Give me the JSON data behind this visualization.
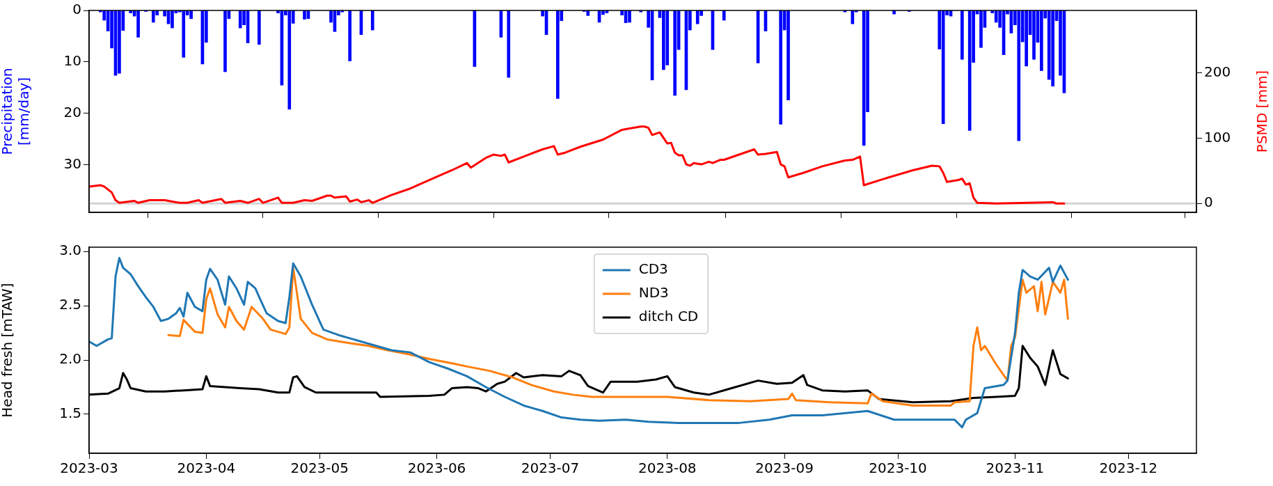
{
  "chart_data": [
    {
      "type": "bar",
      "ylabel": "Precipitation\n[mm/day]",
      "y2label": "PSMD [mm]",
      "xlim": [
        "2023-03-01",
        "2023-12-19"
      ],
      "xticks": [
        "2023-03",
        "2023-04",
        "2023-05",
        "2023-06",
        "2023-07",
        "2023-08",
        "2023-09",
        "2023-10",
        "2023-11",
        "2023-12"
      ],
      "ylim": [
        39.2,
        0
      ],
      "yticks": [
        0,
        10,
        20,
        30
      ],
      "y2lim": [
        -13.6,
        296
      ],
      "y2ticks": [
        0,
        100,
        200
      ],
      "tick_labels": "y",
      "ref_lines": [
        {
          "axis": "y2",
          "value": 0,
          "color": "#d3d3d3"
        }
      ],
      "series": [
        {
          "type": "bar",
          "color": "#0000ff",
          "x": [
            "2023-03-04",
            "2023-03-05",
            "2023-03-06",
            "2023-03-07",
            "2023-03-08",
            "2023-03-09",
            "2023-03-10",
            "2023-03-12",
            "2023-03-13",
            "2023-03-14",
            "2023-03-16",
            "2023-03-18",
            "2023-03-19",
            "2023-03-21",
            "2023-03-22",
            "2023-03-23",
            "2023-03-24",
            "2023-03-25",
            "2023-03-26",
            "2023-03-27",
            "2023-03-28",
            "2023-03-31",
            "2023-04-01",
            "2023-04-06",
            "2023-04-07",
            "2023-04-10",
            "2023-04-11",
            "2023-04-12",
            "2023-04-15",
            "2023-04-20",
            "2023-04-21",
            "2023-04-22",
            "2023-04-23",
            "2023-04-24",
            "2023-04-27",
            "2023-04-28",
            "2023-05-04",
            "2023-05-05",
            "2023-05-06",
            "2023-05-07",
            "2023-05-09",
            "2023-05-12",
            "2023-05-15",
            "2023-06-11",
            "2023-06-18",
            "2023-06-20",
            "2023-06-29",
            "2023-06-30",
            "2023-07-03",
            "2023-07-04",
            "2023-07-10",
            "2023-07-11",
            "2023-07-14",
            "2023-07-15",
            "2023-07-16",
            "2023-07-20",
            "2023-07-21",
            "2023-07-22",
            "2023-07-25",
            "2023-07-27",
            "2023-07-28",
            "2023-07-30",
            "2023-07-31",
            "2023-08-01",
            "2023-08-03",
            "2023-08-04",
            "2023-08-06",
            "2023-08-07",
            "2023-08-09",
            "2023-08-10",
            "2023-08-13",
            "2023-08-16",
            "2023-08-25",
            "2023-08-27",
            "2023-08-31",
            "2023-09-01",
            "2023-09-02",
            "2023-09-17",
            "2023-09-19",
            "2023-09-20",
            "2023-09-22",
            "2023-09-23",
            "2023-09-30",
            "2023-10-04",
            "2023-10-12",
            "2023-10-13",
            "2023-10-14",
            "2023-10-15",
            "2023-10-18",
            "2023-10-20",
            "2023-10-21",
            "2023-10-22",
            "2023-10-23",
            "2023-10-24",
            "2023-10-26",
            "2023-10-27",
            "2023-10-28",
            "2023-10-29",
            "2023-10-30",
            "2023-10-31",
            "2023-11-01",
            "2023-11-02",
            "2023-11-03",
            "2023-11-04",
            "2023-11-05",
            "2023-11-06",
            "2023-11-07",
            "2023-11-08",
            "2023-11-09",
            "2023-11-10",
            "2023-11-11",
            "2023-11-12",
            "2023-11-13",
            "2023-11-14"
          ],
          "values": [
            0.3,
            1.9,
            4.0,
            7.3,
            12.6,
            12.2,
            3.9,
            0.5,
            1.1,
            5.2,
            0.2,
            2.3,
            0.9,
            1.1,
            2.6,
            3.4,
            0.5,
            0.3,
            9.1,
            0.9,
            1.6,
            10.4,
            6.2,
            11.9,
            1.6,
            3.4,
            2.8,
            6.3,
            6.6,
            0.5,
            14.5,
            0.9,
            19.2,
            2.5,
            1.7,
            1.6,
            2.3,
            4.1,
            0.9,
            0.3,
            9.8,
            4.7,
            3.8,
            10.9,
            5.2,
            13.0,
            1.1,
            4.7,
            17.1,
            2.0,
            0.2,
            1.0,
            2.3,
            0.8,
            0.5,
            0.9,
            2.4,
            2.3,
            0.3,
            3.3,
            13.5,
            1.4,
            11.5,
            10.6,
            16.5,
            7.6,
            15.4,
            3.8,
            2.6,
            1.0,
            7.6,
            1.9,
            10.2,
            4.0,
            22.1,
            3.8,
            17.4,
            0.3,
            2.6,
            0.3,
            26.2,
            19.7,
            0.7,
            0.2,
            7.5,
            22.0,
            0.9,
            1.1,
            9.5,
            23.3,
            10.1,
            0.7,
            7.2,
            3.3,
            0.5,
            2.3,
            3.3,
            8.6,
            0.7,
            4.4,
            2.8,
            25.3,
            6.1,
            10.8,
            4.7,
            9.5,
            6.2,
            11.7,
            1.5,
            13.4,
            14.7,
            2.0,
            12.6,
            16.0
          ]
        },
        {
          "type": "line",
          "axis": "y2",
          "color": "#ff0000",
          "x": [
            "2023-03-01",
            "2023-03-04",
            "2023-03-05",
            "2023-03-07",
            "2023-03-08",
            "2023-03-09",
            "2023-03-13",
            "2023-03-14",
            "2023-03-17",
            "2023-03-21",
            "2023-03-25",
            "2023-03-27",
            "2023-03-30",
            "2023-03-31",
            "2023-04-05",
            "2023-04-06",
            "2023-04-10",
            "2023-04-12",
            "2023-04-15",
            "2023-04-16",
            "2023-04-20",
            "2023-04-21",
            "2023-04-24",
            "2023-04-27",
            "2023-04-29",
            "2023-05-03",
            "2023-05-04",
            "2023-05-05",
            "2023-05-08",
            "2023-05-09",
            "2023-05-11",
            "2023-05-12",
            "2023-05-14",
            "2023-05-15",
            "2023-05-20",
            "2023-05-25",
            "2023-05-30",
            "2023-06-05",
            "2023-06-09",
            "2023-06-10",
            "2023-06-14",
            "2023-06-16",
            "2023-06-18",
            "2023-06-19",
            "2023-06-20",
            "2023-06-24",
            "2023-06-29",
            "2023-07-02",
            "2023-07-03",
            "2023-07-05",
            "2023-07-09",
            "2023-07-15",
            "2023-07-20",
            "2023-07-22",
            "2023-07-25",
            "2023-07-26",
            "2023-07-27",
            "2023-07-28",
            "2023-07-30",
            "2023-08-01",
            "2023-08-02",
            "2023-08-03",
            "2023-08-04",
            "2023-08-05",
            "2023-08-06",
            "2023-08-07",
            "2023-08-08",
            "2023-08-10",
            "2023-08-12",
            "2023-08-13",
            "2023-08-15",
            "2023-08-16",
            "2023-08-24",
            "2023-08-25",
            "2023-08-27",
            "2023-08-30",
            "2023-08-31",
            "2023-09-01",
            "2023-09-02",
            "2023-09-06",
            "2023-09-11",
            "2023-09-17",
            "2023-09-19",
            "2023-09-21",
            "2023-09-22",
            "2023-09-28",
            "2023-10-05",
            "2023-10-10",
            "2023-10-12",
            "2023-10-13",
            "2023-10-14",
            "2023-10-17",
            "2023-10-18",
            "2023-10-19",
            "2023-10-20",
            "2023-10-21",
            "2023-10-22",
            "2023-10-27",
            "2023-11-11",
            "2023-11-12",
            "2023-11-14"
          ],
          "values": [
            26,
            28,
            26,
            17,
            5,
            1,
            4,
            1,
            5,
            5,
            1,
            1,
            5,
            1,
            7,
            1,
            4,
            1,
            7,
            1,
            9,
            1,
            1,
            5,
            4,
            12,
            12,
            9,
            11,
            3,
            6,
            2,
            5,
            1,
            13,
            23,
            36,
            51,
            62,
            55,
            70,
            75,
            73,
            75,
            63,
            72,
            83,
            88,
            75,
            78,
            87,
            98,
            113,
            115,
            118,
            118,
            116,
            105,
            109,
            92,
            93,
            78,
            74,
            74,
            60,
            58,
            62,
            60,
            64,
            62,
            67,
            67,
            83,
            75,
            76,
            79,
            60,
            57,
            40,
            47,
            57,
            66,
            67,
            72,
            28,
            39,
            51,
            58,
            57,
            47,
            33,
            36,
            38,
            29,
            31,
            9,
            1,
            0,
            2,
            0,
            0
          ]
        }
      ]
    },
    {
      "type": "line",
      "ylabel": "Head fresh [mTAW]",
      "xlim": [
        "2023-03-01",
        "2023-12-19"
      ],
      "xticks": [
        "2023-03",
        "2023-04",
        "2023-05",
        "2023-06",
        "2023-07",
        "2023-08",
        "2023-09",
        "2023-10",
        "2023-11",
        "2023-12"
      ],
      "ylim": [
        1.14,
        3.04
      ],
      "yticks": [
        1.5,
        {
          "value": 2,
          "label": "2.0"
        },
        2.5,
        {
          "value": 3,
          "label": "3.0"
        }
      ],
      "legend": "top",
      "marker": "none",
      "series": [
        {
          "name": "CD3",
          "color": "#1f77b4",
          "x": [
            "2023-03-01",
            "2023-03-03",
            "2023-03-06",
            "2023-03-07",
            "2023-03-08",
            "2023-03-09",
            "2023-03-10",
            "2023-03-12",
            "2023-03-14",
            "2023-03-16",
            "2023-03-18",
            "2023-03-20",
            "2023-03-22",
            "2023-03-24",
            "2023-03-25",
            "2023-03-26",
            "2023-03-27",
            "2023-03-29",
            "2023-03-31",
            "2023-04-01",
            "2023-04-02",
            "2023-04-04",
            "2023-04-06",
            "2023-04-07",
            "2023-04-09",
            "2023-04-11",
            "2023-04-12",
            "2023-04-14",
            "2023-04-15",
            "2023-04-17",
            "2023-04-20",
            "2023-04-22",
            "2023-04-23",
            "2023-04-24",
            "2023-04-26",
            "2023-04-29",
            "2023-05-02",
            "2023-05-06",
            "2023-05-10",
            "2023-05-15",
            "2023-05-20",
            "2023-05-25",
            "2023-05-30",
            "2023-06-04",
            "2023-06-09",
            "2023-06-14",
            "2023-06-19",
            "2023-06-24",
            "2023-06-29",
            "2023-07-04",
            "2023-07-09",
            "2023-07-14",
            "2023-07-21",
            "2023-07-27",
            "2023-08-04",
            "2023-08-12",
            "2023-08-20",
            "2023-08-28",
            "2023-09-03",
            "2023-09-11",
            "2023-09-23",
            "2023-09-30",
            "2023-10-07",
            "2023-10-16",
            "2023-10-18",
            "2023-10-19",
            "2023-10-22",
            "2023-10-24",
            "2023-10-29",
            "2023-10-30",
            "2023-11-01",
            "2023-11-02",
            "2023-11-03",
            "2023-11-05",
            "2023-11-07",
            "2023-11-10",
            "2023-11-11",
            "2023-11-13",
            "2023-11-15"
          ],
          "values": [
            2.17,
            2.13,
            2.19,
            2.2,
            2.77,
            2.94,
            2.85,
            2.79,
            2.68,
            2.58,
            2.49,
            2.36,
            2.38,
            2.43,
            2.48,
            2.4,
            2.62,
            2.49,
            2.45,
            2.74,
            2.84,
            2.74,
            2.51,
            2.77,
            2.66,
            2.51,
            2.72,
            2.66,
            2.58,
            2.43,
            2.36,
            2.34,
            2.58,
            2.89,
            2.77,
            2.51,
            2.28,
            2.23,
            2.19,
            2.14,
            2.09,
            2.07,
            1.98,
            1.92,
            1.85,
            1.75,
            1.66,
            1.58,
            1.53,
            1.47,
            1.45,
            1.44,
            1.45,
            1.43,
            1.42,
            1.42,
            1.42,
            1.45,
            1.49,
            1.49,
            1.53,
            1.45,
            1.45,
            1.45,
            1.38,
            1.45,
            1.51,
            1.74,
            1.77,
            1.81,
            2.25,
            2.62,
            2.83,
            2.77,
            2.74,
            2.85,
            2.72,
            2.87,
            2.74
          ]
        },
        {
          "name": "ND3",
          "color": "#ff7f0e",
          "x": [
            "2023-03-22",
            "2023-03-25",
            "2023-03-26",
            "2023-03-29",
            "2023-03-31",
            "2023-04-01",
            "2023-04-02",
            "2023-04-04",
            "2023-04-06",
            "2023-04-07",
            "2023-04-09",
            "2023-04-11",
            "2023-04-13",
            "2023-04-16",
            "2023-04-18",
            "2023-04-22",
            "2023-04-23",
            "2023-04-24",
            "2023-04-26",
            "2023-04-29",
            "2023-05-03",
            "2023-05-08",
            "2023-05-14",
            "2023-05-19",
            "2023-05-25",
            "2023-05-30",
            "2023-06-05",
            "2023-06-09",
            "2023-06-15",
            "2023-06-21",
            "2023-06-26",
            "2023-07-02",
            "2023-07-07",
            "2023-07-12",
            "2023-07-21",
            "2023-08-01",
            "2023-08-12",
            "2023-08-23",
            "2023-09-02",
            "2023-09-03",
            "2023-09-04",
            "2023-09-13",
            "2023-09-23",
            "2023-09-24",
            "2023-09-27",
            "2023-10-05",
            "2023-10-15",
            "2023-10-16",
            "2023-10-20",
            "2023-10-21",
            "2023-10-22",
            "2023-10-23",
            "2023-10-24",
            "2023-10-27",
            "2023-10-30",
            "2023-10-31",
            "2023-11-01",
            "2023-11-03",
            "2023-11-04",
            "2023-11-06",
            "2023-11-07",
            "2023-11-08",
            "2023-11-09",
            "2023-11-11",
            "2023-11-13",
            "2023-11-14",
            "2023-11-15"
          ],
          "values": [
            2.23,
            2.22,
            2.37,
            2.26,
            2.25,
            2.56,
            2.66,
            2.42,
            2.3,
            2.49,
            2.36,
            2.28,
            2.49,
            2.38,
            2.28,
            2.24,
            2.3,
            2.85,
            2.38,
            2.25,
            2.19,
            2.16,
            2.13,
            2.09,
            2.05,
            2.01,
            1.97,
            1.94,
            1.9,
            1.84,
            1.77,
            1.71,
            1.68,
            1.66,
            1.66,
            1.66,
            1.63,
            1.62,
            1.64,
            1.69,
            1.63,
            1.61,
            1.6,
            1.69,
            1.62,
            1.58,
            1.58,
            1.61,
            1.62,
            2.13,
            2.3,
            2.09,
            2.13,
            1.96,
            1.81,
            2.13,
            2.21,
            2.74,
            2.62,
            2.68,
            2.45,
            2.72,
            2.42,
            2.72,
            2.62,
            2.74,
            2.38
          ]
        },
        {
          "name": "ditch CD",
          "color": "#000000",
          "x": [
            "2023-03-01",
            "2023-03-06",
            "2023-03-09",
            "2023-03-10",
            "2023-03-11",
            "2023-03-12",
            "2023-03-16",
            "2023-03-21",
            "2023-03-26",
            "2023-03-31",
            "2023-04-01",
            "2023-04-02",
            "2023-04-06",
            "2023-04-10",
            "2023-04-15",
            "2023-04-20",
            "2023-04-23",
            "2023-04-24",
            "2023-04-25",
            "2023-04-27",
            "2023-04-30",
            "2023-05-10",
            "2023-05-16",
            "2023-05-17",
            "2023-05-30",
            "2023-06-03",
            "2023-06-05",
            "2023-06-09",
            "2023-06-12",
            "2023-06-14",
            "2023-06-17",
            "2023-06-19",
            "2023-06-22",
            "2023-06-24",
            "2023-06-29",
            "2023-07-04",
            "2023-07-06",
            "2023-07-09",
            "2023-07-11",
            "2023-07-15",
            "2023-07-17",
            "2023-07-24",
            "2023-07-29",
            "2023-08-01",
            "2023-08-03",
            "2023-08-08",
            "2023-08-12",
            "2023-08-18",
            "2023-08-25",
            "2023-08-30",
            "2023-09-03",
            "2023-09-06",
            "2023-09-07",
            "2023-09-11",
            "2023-09-17",
            "2023-09-23",
            "2023-09-26",
            "2023-10-05",
            "2023-10-15",
            "2023-10-21",
            "2023-10-27",
            "2023-11-01",
            "2023-11-02",
            "2023-11-03",
            "2023-11-05",
            "2023-11-07",
            "2023-11-09",
            "2023-11-11",
            "2023-11-13",
            "2023-11-15"
          ],
          "values": [
            1.68,
            1.69,
            1.74,
            1.88,
            1.82,
            1.74,
            1.71,
            1.71,
            1.72,
            1.73,
            1.85,
            1.76,
            1.75,
            1.74,
            1.73,
            1.7,
            1.7,
            1.84,
            1.85,
            1.75,
            1.7,
            1.7,
            1.7,
            1.66,
            1.67,
            1.68,
            1.74,
            1.75,
            1.74,
            1.71,
            1.78,
            1.8,
            1.88,
            1.84,
            1.86,
            1.85,
            1.9,
            1.86,
            1.76,
            1.7,
            1.8,
            1.8,
            1.82,
            1.85,
            1.75,
            1.7,
            1.68,
            1.74,
            1.81,
            1.78,
            1.79,
            1.86,
            1.77,
            1.72,
            1.71,
            1.72,
            1.64,
            1.61,
            1.62,
            1.65,
            1.66,
            1.67,
            1.74,
            2.13,
            2.02,
            1.94,
            1.77,
            2.09,
            1.87,
            1.83
          ]
        }
      ]
    }
  ]
}
